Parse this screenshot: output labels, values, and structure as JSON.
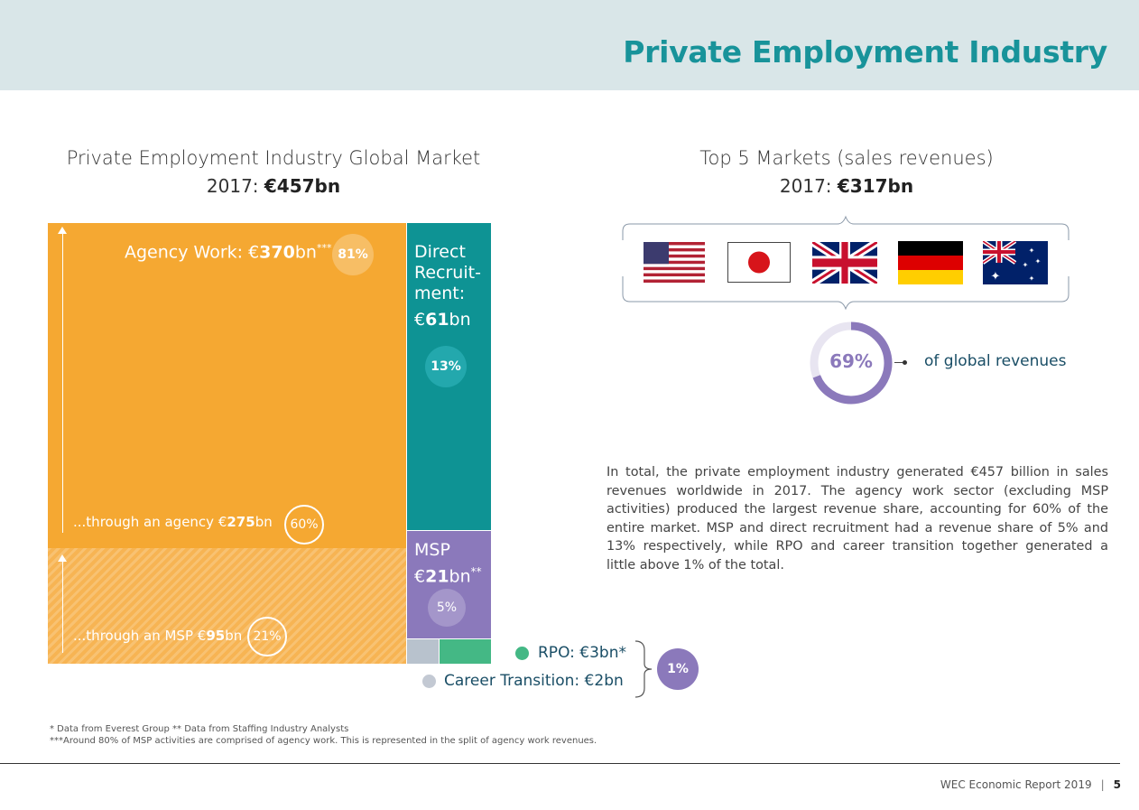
{
  "header": {
    "title": "Private Employment Industry"
  },
  "left_section": {
    "title": "Private Employment Industry Global Market",
    "year": "2017:",
    "total": "€457bn"
  },
  "right_section": {
    "title": "Top 5 Markets (sales revenues)",
    "year": "2017:",
    "total": "€317bn",
    "flags": [
      "USA",
      "Japan",
      "United Kingdom",
      "Germany",
      "Australia"
    ],
    "donut_percent": "69%",
    "donut_value": 69,
    "donut_label": "of global revenues"
  },
  "chart_data": {
    "type": "treemap",
    "title": "Private Employment Industry Global Market",
    "total": "€457bn",
    "segments": [
      {
        "name": "Agency Work",
        "value": 370,
        "percent": 81,
        "parts": [
          {
            "name": "through an agency",
            "value": 275,
            "percent": 60
          },
          {
            "name": "through an MSP",
            "value": 95,
            "percent": 21
          }
        ]
      },
      {
        "name": "Direct Recruitment",
        "value": 61,
        "percent": 13
      },
      {
        "name": "MSP",
        "value": 21,
        "percent": 5
      },
      {
        "name": "RPO",
        "value": 3
      },
      {
        "name": "Career Transition",
        "value": 2
      }
    ]
  },
  "treemap": {
    "agency_label": "Agency Work: €",
    "agency_value": "370",
    "agency_unit": "bn",
    "agency_stars": "***",
    "agency_pct": "81%",
    "through_agency_label": "...through an agency €",
    "through_agency_value": "275",
    "through_agency_unit": "bn",
    "through_agency_pct": "60%",
    "through_msp_label": "...through an MSP €",
    "through_msp_value": "95",
    "through_msp_unit": "bn",
    "through_msp_pct": "21%",
    "direct_line1": "Direct",
    "direct_line2": "Recruit-",
    "direct_line3": "ment:",
    "direct_currency": "€",
    "direct_value": "61",
    "direct_unit": "bn",
    "direct_pct": "13%",
    "msp_label": "MSP",
    "msp_currency": "€",
    "msp_value": "21",
    "msp_unit": "bn",
    "msp_stars": "**",
    "msp_pct": "5%"
  },
  "legend": {
    "rpo": "RPO: €3bn*",
    "career": "Career Transition: €2bn",
    "combined_pct": "1%"
  },
  "colors": {
    "agency": "#f5a832",
    "direct": "#0e9394",
    "msp": "#8b79bb",
    "rpo": "#44b885",
    "career": "#b8c2cd",
    "accent": "#18939a"
  },
  "body_text": "In total, the private employment industry generated €457 billion in sales revenues worldwide in 2017. The agency work sector (excluding MSP activities) produced the largest revenue share, accounting for 60% of the entire market. MSP and direct recruitment had a revenue share of 5% and 13% respectively, while RPO and career transition together generated a little above 1% of the total.",
  "footnotes": {
    "line1": "* Data from Everest Group   ** Data from Staffing Industry Analysts",
    "line2": "***Around 80% of MSP activities are comprised of agency work. This is represented in the split of agency work revenues."
  },
  "footer": {
    "report": "WEC Economic Report 2019",
    "separator": "|",
    "page": "5"
  }
}
